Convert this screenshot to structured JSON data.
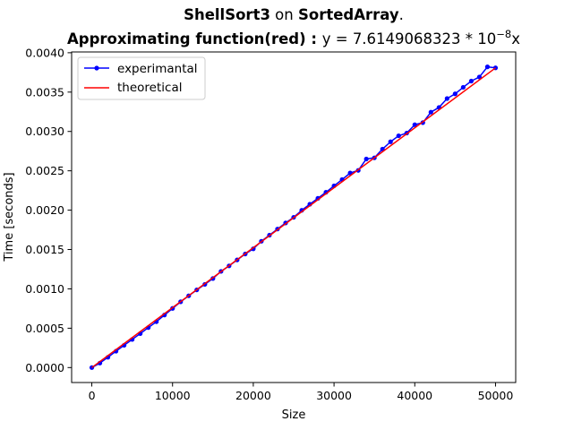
{
  "chart_data": {
    "type": "line",
    "title": {
      "line1": [
        {
          "text": "ShellSort3",
          "bold": true
        },
        {
          "text": " on ",
          "bold": false
        },
        {
          "text": "SortedArray",
          "bold": true
        },
        {
          "text": ".",
          "bold": false
        }
      ],
      "line2": [
        {
          "text": "Approximating function(red)",
          "bold": true
        },
        {
          "text": " : ",
          "bold": true
        },
        {
          "text": "y = 7.6149068323 * 10",
          "bold": false
        }
      ],
      "line2_exponent": "−8",
      "line2_tail": "x"
    },
    "xlabel": "Size",
    "ylabel": "Time [seconds]",
    "xlim": [
      -2500,
      52500
    ],
    "ylim": [
      -0.00019,
      0.00401
    ],
    "xticks": [
      0,
      10000,
      20000,
      30000,
      40000,
      50000
    ],
    "xtick_labels": [
      "0",
      "10000",
      "20000",
      "30000",
      "40000",
      "50000"
    ],
    "yticks": [
      0,
      0.0005,
      0.001,
      0.0015,
      0.002,
      0.0025,
      0.003,
      0.0035,
      0.004
    ],
    "ytick_labels": [
      "0.0000",
      "0.0005",
      "0.0010",
      "0.0015",
      "0.0020",
      "0.0025",
      "0.0030",
      "0.0035",
      "0.0040"
    ],
    "grid": false,
    "legend_position": "upper-left",
    "series": [
      {
        "name": "experimantal",
        "color": "#0000ff",
        "marker": "circle",
        "x": [
          0,
          1000,
          2000,
          3000,
          4000,
          5000,
          6000,
          7000,
          8000,
          9000,
          10000,
          11000,
          12000,
          13000,
          14000,
          15000,
          16000,
          17000,
          18000,
          19000,
          20000,
          21000,
          22000,
          23000,
          24000,
          25000,
          26000,
          27000,
          28000,
          29000,
          30000,
          31000,
          32000,
          33000,
          34000,
          35000,
          36000,
          37000,
          38000,
          39000,
          40000,
          41000,
          42000,
          43000,
          44000,
          45000,
          46000,
          47000,
          48000,
          49000,
          50000
        ],
        "y": [
          0.0,
          5.7e-05,
          0.000131,
          0.000208,
          0.000283,
          0.000357,
          0.000432,
          0.000508,
          0.000583,
          0.000668,
          0.000752,
          0.000836,
          0.000912,
          0.000987,
          0.001057,
          0.001132,
          0.001222,
          0.001292,
          0.001368,
          0.001443,
          0.001509,
          0.001605,
          0.001682,
          0.00176,
          0.001837,
          0.001909,
          0.001998,
          0.002075,
          0.00215,
          0.002227,
          0.002309,
          0.002389,
          0.002472,
          0.002505,
          0.00265,
          0.002665,
          0.002776,
          0.002869,
          0.002945,
          0.002979,
          0.003085,
          0.003112,
          0.003245,
          0.003305,
          0.003418,
          0.003478,
          0.003561,
          0.00364,
          0.003692,
          0.003821,
          0.003808
        ]
      },
      {
        "name": "theoretical",
        "color": "#ff0000",
        "marker": "none",
        "x": [
          0,
          50000
        ],
        "y": [
          0.0,
          0.003807453
        ]
      }
    ]
  }
}
